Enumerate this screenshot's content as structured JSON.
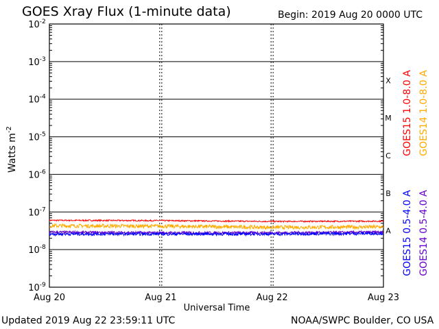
{
  "header": {
    "title": "GOES Xray Flux (1-minute data)",
    "begin": "Begin:  2019 Aug 20 0000 UTC"
  },
  "footer": {
    "updated": "Updated 2019 Aug 22 23:59:11 UTC",
    "credit": "NOAA/SWPC Boulder, CO USA"
  },
  "colors": {
    "goes15_long": "#ff0000",
    "goes14_long": "#ffaa00",
    "goes15_short": "#0000ff",
    "goes14_short": "#6600cc"
  },
  "chart_data": {
    "type": "line",
    "title": "GOES Xray Flux (1-minute data)",
    "xlabel": "Universal Time",
    "ylabel": "Watts m",
    "ylabel_exponent": "-2",
    "y_scale": "log",
    "ylim": [
      1e-09,
      0.01
    ],
    "x_ticks": [
      "Aug 20",
      "Aug 21",
      "Aug 22",
      "Aug 23"
    ],
    "xlim": [
      "2019-08-20",
      "2019-08-23"
    ],
    "y_ticks": [
      {
        "base": "10",
        "exp": "-2"
      },
      {
        "base": "10",
        "exp": "-3"
      },
      {
        "base": "10",
        "exp": "-4"
      },
      {
        "base": "10",
        "exp": "-5"
      },
      {
        "base": "10",
        "exp": "-6"
      },
      {
        "base": "10",
        "exp": "-7"
      },
      {
        "base": "10",
        "exp": "-8"
      },
      {
        "base": "10",
        "exp": "-9"
      }
    ],
    "flare_classes": [
      "X",
      "M",
      "C",
      "B",
      "A"
    ],
    "grid": "horizontal",
    "series": [
      {
        "name": "GOES15 1.0-8.0 A",
        "x": [
          "2019-08-20",
          "2019-08-21",
          "2019-08-22",
          "2019-08-23"
        ],
        "values": [
          6e-08,
          5.9e-08,
          5.6e-08,
          5.7e-08
        ]
      },
      {
        "name": "GOES14 1.0-8.0 A",
        "x": [
          "2019-08-20",
          "2019-08-21",
          "2019-08-22",
          "2019-08-23"
        ],
        "values": [
          4.3e-08,
          4.2e-08,
          3.9e-08,
          4e-08
        ]
      },
      {
        "name": "GOES15 0.5-4.0 A",
        "x": [
          "2019-08-20",
          "2019-08-21",
          "2019-08-22",
          "2019-08-23"
        ],
        "values": [
          2.6e-08,
          2.6e-08,
          2.6e-08,
          2.7e-08
        ]
      },
      {
        "name": "GOES14 0.5-4.0 A",
        "x": [
          "2019-08-20",
          "2019-08-21",
          "2019-08-22",
          "2019-08-23"
        ],
        "values": [
          2.9e-08,
          2.8e-08,
          2.8e-08,
          2.9e-08
        ]
      }
    ]
  }
}
